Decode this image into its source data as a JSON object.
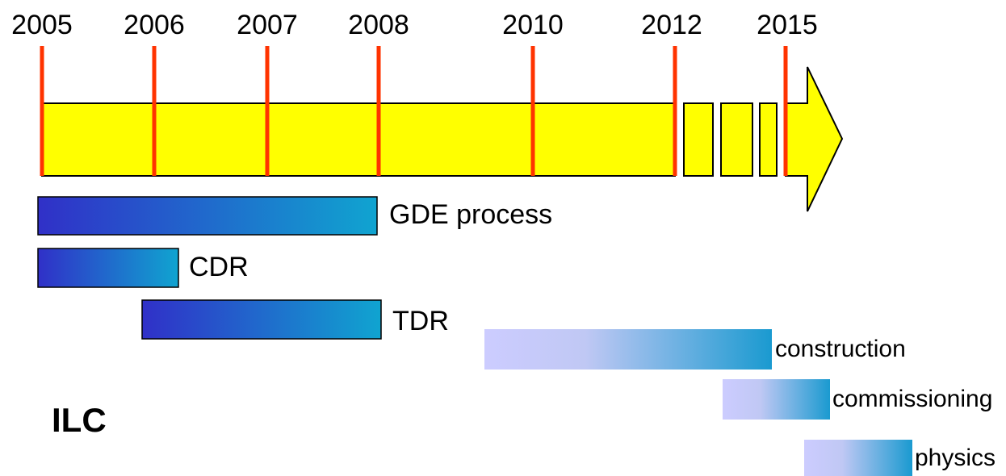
{
  "years": [
    "2005",
    "2006",
    "2007",
    "2008",
    "2010",
    "2012",
    "2015"
  ],
  "phases": [
    {
      "label": "GDE process"
    },
    {
      "label": "CDR"
    },
    {
      "label": "TDR"
    },
    {
      "label": "construction"
    },
    {
      "label": "commissioning"
    },
    {
      "label": "physics"
    }
  ],
  "title": "ILC"
}
